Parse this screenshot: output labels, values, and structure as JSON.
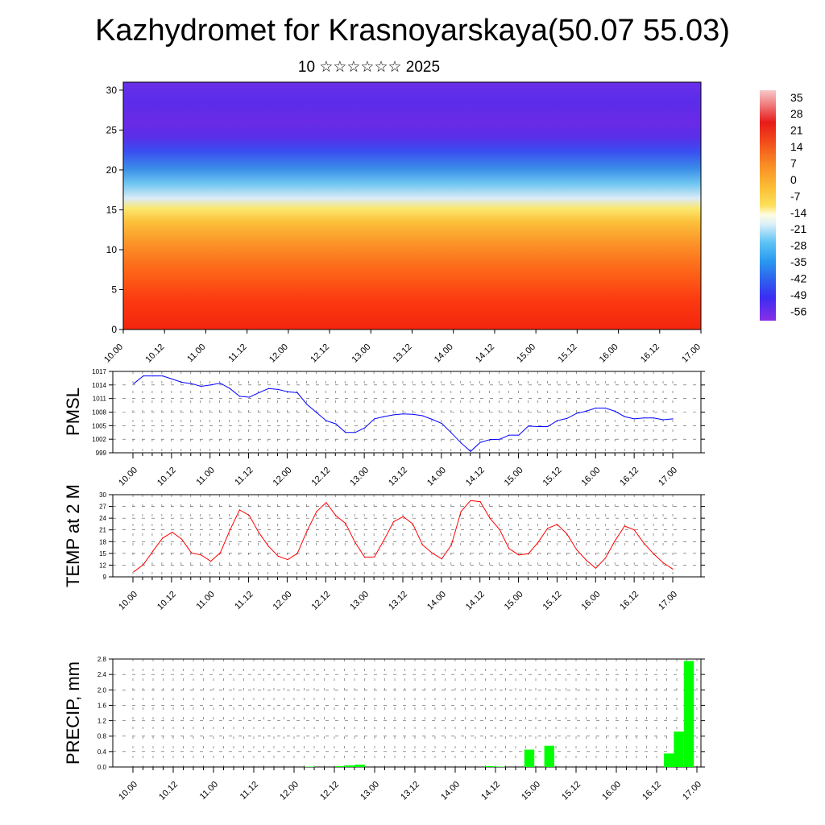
{
  "header": {
    "title": "Kazhydromet for Krasnoyarskaya(50.07 55.03)",
    "subtitle": "10 ☆☆☆☆☆☆ 2025"
  },
  "chart_data": [
    {
      "type": "heatmap",
      "name": "upper-air temperature and wind cross-section",
      "x_ticks": [
        "10.00",
        "10.12",
        "11.00",
        "11.12",
        "12.00",
        "12.12",
        "13.00",
        "13.12",
        "14.00",
        "14.12",
        "15.00",
        "15.12",
        "16.00",
        "16.12",
        "17.00"
      ],
      "y_ticks": [
        0,
        5,
        10,
        15,
        20,
        25,
        30
      ],
      "ylim": [
        0,
        31
      ],
      "colorbar": {
        "labels": [
          35,
          28,
          21,
          14,
          7,
          0,
          -7,
          -14,
          -21,
          -28,
          -35,
          -42,
          -49,
          -56
        ],
        "range": [
          -60,
          38
        ]
      },
      "overlay": "wind barbs"
    },
    {
      "type": "line",
      "ylabel": "PMSL",
      "y_ticks": [
        999,
        1002,
        1005,
        1008,
        1011,
        1014,
        1017
      ],
      "ylim": [
        999,
        1017
      ],
      "x_ticks": [
        "10.00",
        "10.12",
        "11.00",
        "11.12",
        "12.00",
        "12.12",
        "13.00",
        "13.12",
        "14.00",
        "14.12",
        "15.00",
        "15.12",
        "16.00",
        "16.12",
        "17.00"
      ],
      "color": "#0000ff",
      "values": [
        1014.3,
        1016.0,
        1016.0,
        1016.0,
        1015.3,
        1014.6,
        1014.3,
        1013.7,
        1014.0,
        1014.4,
        1013.2,
        1011.5,
        1011.3,
        1012.3,
        1013.2,
        1013.0,
        1012.5,
        1012.3,
        1009.7,
        1007.9,
        1006.1,
        1005.4,
        1003.5,
        1003.5,
        1004.5,
        1006.5,
        1007.0,
        1007.4,
        1007.6,
        1007.5,
        1007.2,
        1006.4,
        1005.5,
        1003.4,
        1001.2,
        999.3,
        1001.3,
        1001.9,
        1002.0,
        1002.9,
        1002.9,
        1004.9,
        1004.8,
        1004.8,
        1006.1,
        1006.6,
        1007.7,
        1008.2,
        1008.9,
        1008.9,
        1008.2,
        1007.0,
        1006.5,
        1006.7,
        1006.7,
        1006.3,
        1006.5
      ]
    },
    {
      "type": "line",
      "ylabel": "TEMP at 2 M",
      "y_ticks": [
        9,
        12,
        15,
        18,
        21,
        24,
        27,
        30
      ],
      "ylim": [
        9,
        30
      ],
      "x_ticks": [
        "10.00",
        "10.12",
        "11.00",
        "11.12",
        "12.00",
        "12.12",
        "13.00",
        "13.12",
        "14.00",
        "14.12",
        "15.00",
        "15.12",
        "16.00",
        "16.12",
        "17.00"
      ],
      "color": "#ff0000",
      "values": [
        10.3,
        12.1,
        15.6,
        18.9,
        20.4,
        18.6,
        15.1,
        14.6,
        13.0,
        15.2,
        21.0,
        26.1,
        24.7,
        20.3,
        16.8,
        14.3,
        13.4,
        15.0,
        20.7,
        25.7,
        28.0,
        24.6,
        22.7,
        17.8,
        14.0,
        14.1,
        18.4,
        23.1,
        24.4,
        22.5,
        17.2,
        15.1,
        13.6,
        17.1,
        25.7,
        28.5,
        28.2,
        24.0,
        21.1,
        16.2,
        14.6,
        14.9,
        17.8,
        21.4,
        22.4,
        20.0,
        16.0,
        13.3,
        11.2,
        13.8,
        18.2,
        22.0,
        21.0,
        17.6,
        14.9,
        12.6,
        11.0
      ]
    },
    {
      "type": "bar",
      "ylabel": "PRECIP, mm",
      "y_ticks": [
        0.0,
        0.4,
        0.8,
        1.2,
        1.6,
        2.0,
        2.4,
        2.8
      ],
      "ylim": [
        0,
        2.8
      ],
      "x_ticks": [
        "10.00",
        "10.12",
        "11.00",
        "11.12",
        "12.00",
        "12.12",
        "13.00",
        "13.12",
        "14.00",
        "14.12",
        "15.00",
        "15.12",
        "16.00",
        "16.12",
        "17.00"
      ],
      "color": "#00ff00",
      "values": [
        0,
        0,
        0,
        0,
        0,
        0,
        0,
        0,
        0,
        0,
        0,
        0,
        0,
        0,
        0,
        0,
        0,
        0,
        0.01,
        0,
        0,
        0.02,
        0.04,
        0.06,
        0,
        0,
        0,
        0,
        0,
        0,
        0,
        0,
        0,
        0,
        0,
        0,
        0.02,
        0.01,
        0,
        0,
        0.45,
        0,
        0.55,
        0,
        0,
        0,
        0,
        0,
        0,
        0,
        0,
        0,
        0,
        0,
        0.35,
        0.92,
        2.75
      ]
    }
  ]
}
